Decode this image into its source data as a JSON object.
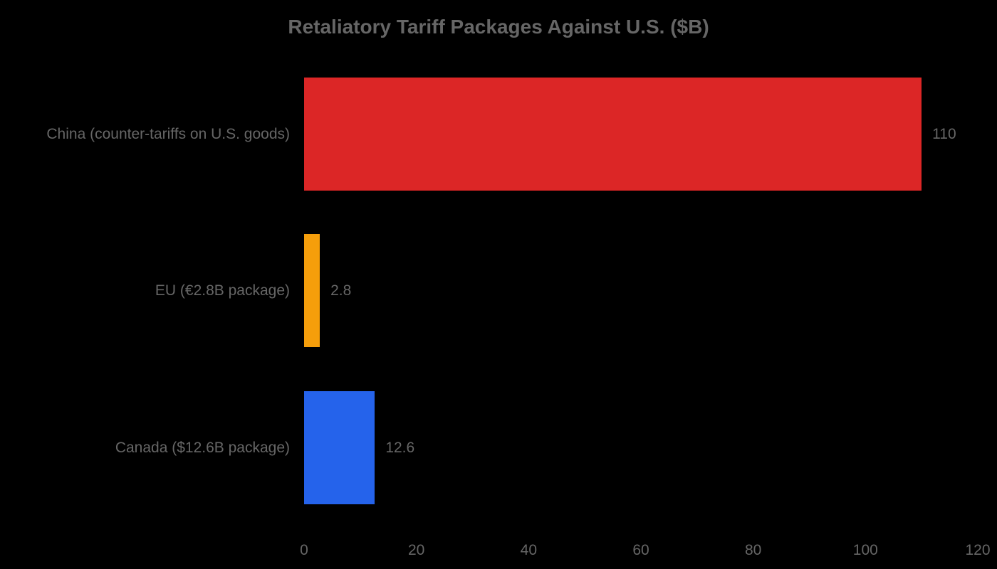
{
  "chart_data": {
    "type": "bar",
    "orientation": "horizontal",
    "title": "Retaliatory Tariff Packages Against U.S. ($B)",
    "xlabel": "",
    "ylabel": "",
    "categories": [
      "China (counter-tariffs on U.S. goods)",
      "EU (€2.8B package)",
      "Canada ($12.6B package)"
    ],
    "values": [
      110,
      2.8,
      12.6
    ],
    "value_labels": [
      "110",
      "2.8",
      "12.6"
    ],
    "colors": [
      "#DC2626",
      "#F59E0B",
      "#2563EB"
    ],
    "xlim": [
      0,
      120
    ],
    "x_ticks": [
      "0",
      "20",
      "40",
      "60",
      "80",
      "100",
      "120"
    ],
    "grid": false,
    "legend": null
  }
}
